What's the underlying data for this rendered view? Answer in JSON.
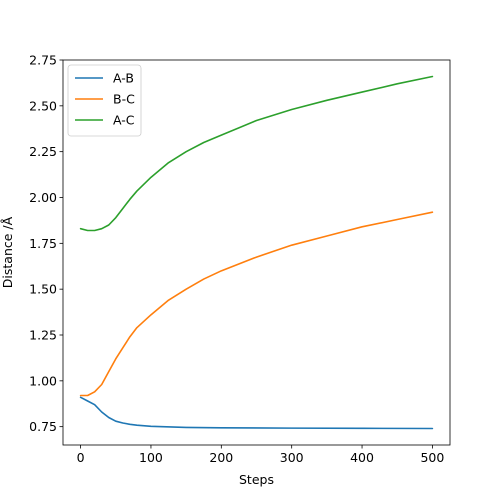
{
  "chart_data": {
    "type": "line",
    "xlabel": "Steps",
    "ylabel": "Distance /Å",
    "xlim": [
      -25,
      525
    ],
    "ylim": [
      0.65,
      2.75
    ],
    "xticks": [
      0,
      100,
      200,
      300,
      400,
      500
    ],
    "xtick_labels": [
      "0",
      "100",
      "200",
      "300",
      "400",
      "500"
    ],
    "yticks": [
      0.75,
      1.0,
      1.25,
      1.5,
      1.75,
      2.0,
      2.25,
      2.5,
      2.75
    ],
    "ytick_labels": [
      "0.75",
      "1.00",
      "1.25",
      "1.50",
      "1.75",
      "2.00",
      "2.25",
      "2.50",
      "2.75"
    ],
    "grid": false,
    "legend_position": "top-left",
    "series": [
      {
        "name": "A-B",
        "color": "#1f77b4",
        "x": [
          0,
          10,
          20,
          30,
          40,
          50,
          60,
          70,
          80,
          100,
          150,
          200,
          300,
          400,
          500
        ],
        "y": [
          0.91,
          0.89,
          0.87,
          0.83,
          0.8,
          0.78,
          0.77,
          0.763,
          0.758,
          0.752,
          0.746,
          0.744,
          0.742,
          0.741,
          0.74
        ]
      },
      {
        "name": "B-C",
        "color": "#ff7f0e",
        "x": [
          0,
          10,
          20,
          30,
          40,
          50,
          60,
          70,
          80,
          100,
          125,
          150,
          175,
          200,
          250,
          300,
          350,
          400,
          450,
          500
        ],
        "y": [
          0.92,
          0.92,
          0.94,
          0.98,
          1.05,
          1.12,
          1.18,
          1.24,
          1.29,
          1.36,
          1.44,
          1.5,
          1.555,
          1.6,
          1.675,
          1.74,
          1.79,
          1.84,
          1.88,
          1.92
        ]
      },
      {
        "name": "A-C",
        "color": "#2ca02c",
        "x": [
          0,
          10,
          20,
          30,
          40,
          50,
          60,
          70,
          80,
          100,
          125,
          150,
          175,
          200,
          250,
          300,
          350,
          400,
          450,
          500
        ],
        "y": [
          1.83,
          1.82,
          1.82,
          1.83,
          1.85,
          1.89,
          1.94,
          1.99,
          2.035,
          2.11,
          2.19,
          2.25,
          2.3,
          2.34,
          2.42,
          2.48,
          2.53,
          2.575,
          2.62,
          2.66
        ]
      }
    ]
  }
}
